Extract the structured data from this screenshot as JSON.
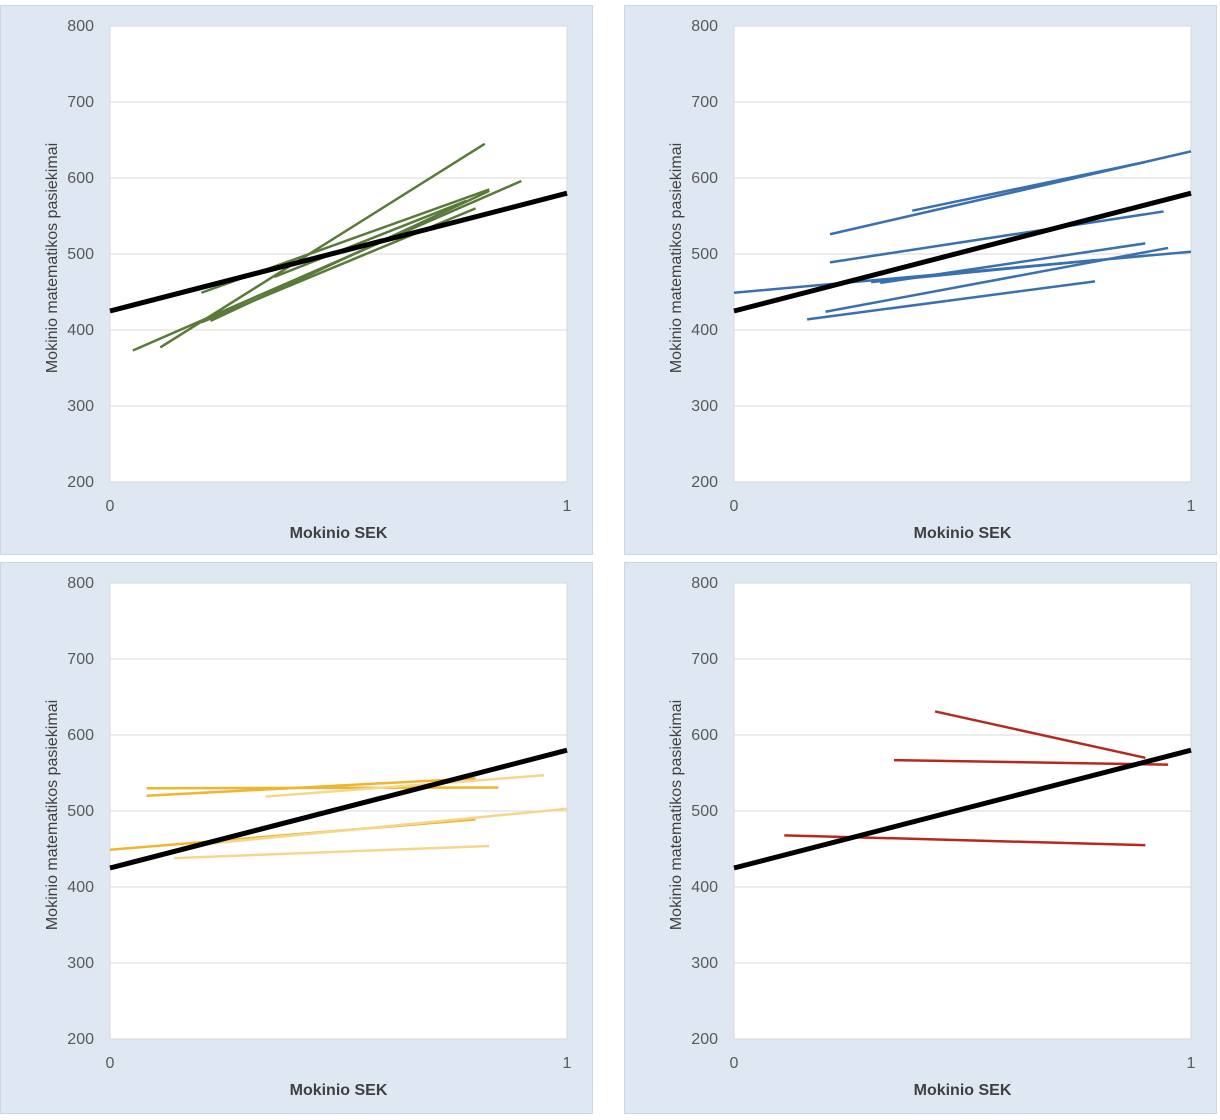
{
  "chart_data": [
    {
      "type": "line",
      "xlabel": "Mokinio SEK",
      "ylabel": "Mokinio matematikos pasiekimai",
      "xlim": [
        0,
        1
      ],
      "ylim": [
        200,
        800
      ],
      "xticks": [
        "0",
        "1"
      ],
      "yticks": [
        "200",
        "300",
        "400",
        "500",
        "600",
        "700",
        "800"
      ],
      "grid": true,
      "reference_line": {
        "x": [
          0,
          1
        ],
        "y": [
          425,
          580
        ],
        "color": "#000000"
      },
      "series_color": "#5a7a3a",
      "series": [
        {
          "x": [
            0.05,
            0.9
          ],
          "y": [
            373,
            596
          ]
        },
        {
          "x": [
            0.11,
            0.82
          ],
          "y": [
            377,
            645
          ]
        },
        {
          "x": [
            0.2,
            0.83
          ],
          "y": [
            449,
            585
          ]
        },
        {
          "x": [
            0.2,
            0.8
          ],
          "y": [
            410,
            560
          ]
        },
        {
          "x": [
            0.22,
            0.83
          ],
          "y": [
            412,
            583
          ]
        },
        {
          "x": [
            0.36,
            0.78
          ],
          "y": [
            470,
            570
          ]
        }
      ]
    },
    {
      "type": "line",
      "xlabel": "Mokinio SEK",
      "ylabel": "Mokinio matematikos pasiekimai",
      "xlim": [
        0,
        1
      ],
      "ylim": [
        200,
        800
      ],
      "xticks": [
        "0",
        "1"
      ],
      "yticks": [
        "200",
        "300",
        "400",
        "500",
        "600",
        "700",
        "800"
      ],
      "grid": true,
      "reference_line": {
        "x": [
          0,
          1
        ],
        "y": [
          425,
          580
        ],
        "color": "#000000"
      },
      "series_color": "#3a70b0",
      "series": [
        {
          "x": [
            0.0,
            1.0
          ],
          "y": [
            449,
            503
          ]
        },
        {
          "x": [
            0.21,
            1.0
          ],
          "y": [
            526,
            635
          ]
        },
        {
          "x": [
            0.39,
            0.9
          ],
          "y": [
            557,
            621
          ]
        },
        {
          "x": [
            0.21,
            0.94
          ],
          "y": [
            489,
            556
          ]
        },
        {
          "x": [
            0.32,
            0.9
          ],
          "y": [
            462,
            514
          ]
        },
        {
          "x": [
            0.2,
            0.95
          ],
          "y": [
            424,
            508
          ]
        },
        {
          "x": [
            0.16,
            0.79
          ],
          "y": [
            414,
            464
          ]
        },
        {
          "x": [
            0.3,
            0.79
          ],
          "y": [
            463,
            492
          ]
        }
      ]
    },
    {
      "type": "line",
      "xlabel": "Mokinio SEK",
      "ylabel": "Mokinio matematikos pasiekimai",
      "xlim": [
        0,
        1
      ],
      "ylim": [
        200,
        800
      ],
      "xticks": [
        "0",
        "1"
      ],
      "yticks": [
        "200",
        "300",
        "400",
        "500",
        "600",
        "700",
        "800"
      ],
      "grid": true,
      "reference_line": {
        "x": [
          0,
          1
        ],
        "y": [
          425,
          580
        ],
        "color": "#000000"
      },
      "series_color": "#f0b838",
      "series": [
        {
          "x": [
            0.08,
            0.85
          ],
          "y": [
            530,
            531
          ],
          "color": "#efb52e"
        },
        {
          "x": [
            0.08,
            0.8
          ],
          "y": [
            520,
            543
          ],
          "color": "#efb52e"
        },
        {
          "x": [
            0.34,
            0.95
          ],
          "y": [
            519,
            547
          ],
          "color": "#f6d68a"
        },
        {
          "x": [
            0.0,
            0.8
          ],
          "y": [
            449,
            489
          ],
          "color": "#efb52e"
        },
        {
          "x": [
            0.18,
            1.0
          ],
          "y": [
            455,
            503
          ],
          "color": "#f6d68a"
        },
        {
          "x": [
            0.14,
            0.83
          ],
          "y": [
            438,
            454
          ],
          "color": "#f6d68a"
        }
      ]
    },
    {
      "type": "line",
      "xlabel": "Mokinio SEK",
      "ylabel": "Mokinio matematikos pasiekimai",
      "xlim": [
        0,
        1
      ],
      "ylim": [
        200,
        800
      ],
      "xticks": [
        "0",
        "1"
      ],
      "yticks": [
        "200",
        "300",
        "400",
        "500",
        "600",
        "700",
        "800"
      ],
      "grid": true,
      "reference_line": {
        "x": [
          0,
          1
        ],
        "y": [
          425,
          580
        ],
        "color": "#000000"
      },
      "series_color": "#b42a1e",
      "series": [
        {
          "x": [
            0.44,
            0.9
          ],
          "y": [
            631,
            570
          ]
        },
        {
          "x": [
            0.35,
            0.95
          ],
          "y": [
            567,
            561
          ]
        },
        {
          "x": [
            0.11,
            0.9
          ],
          "y": [
            468,
            455
          ]
        }
      ]
    }
  ]
}
